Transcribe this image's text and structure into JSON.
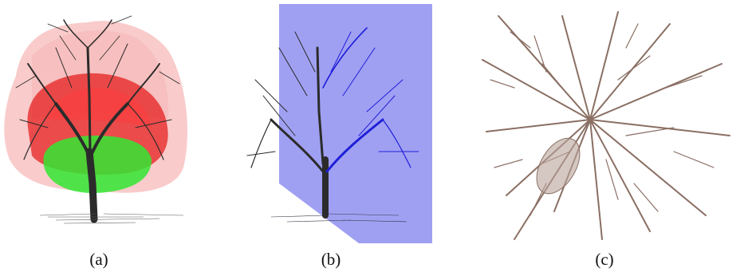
{
  "figure": {
    "panels": [
      {
        "id": "a",
        "caption": "(a)"
      },
      {
        "id": "b",
        "caption": "(b)"
      },
      {
        "id": "c",
        "caption": "(c)"
      }
    ]
  },
  "colors": {
    "branch": "#2b2b2b",
    "branch_blue": "#1f1fd8",
    "branch_brown": "#8a6f63",
    "hull_outer": "#f4a0a0",
    "hull_inner": "#e62020",
    "hull_core": "#33e633",
    "plane": "#9b9bf2"
  }
}
